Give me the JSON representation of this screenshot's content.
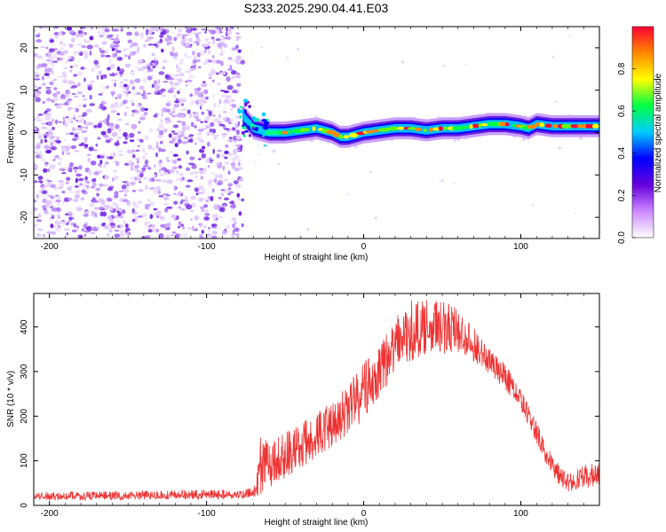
{
  "title": "S233.2025.290.04.41.E03",
  "chart_data": [
    {
      "type": "heatmap",
      "title": "S233.2025.290.04.41.E03",
      "xlabel": "Height of straight line (km)",
      "ylabel": "Frequency (Hz)",
      "xlim": [
        -210,
        150
      ],
      "ylim": [
        -25,
        25
      ],
      "xticks": [
        -200,
        -100,
        0,
        100
      ],
      "yticks": [
        -20,
        -10,
        0,
        10,
        20
      ],
      "noise_region_x": [
        -210,
        -77
      ],
      "ridge": {
        "x": [
          -77,
          -70,
          -60,
          -50,
          -40,
          -30,
          -20,
          -15,
          -10,
          0,
          10,
          20,
          30,
          40,
          50,
          60,
          70,
          80,
          90,
          100,
          105,
          110,
          120,
          130,
          140,
          150
        ],
        "freq": [
          4,
          1,
          0,
          0,
          0.5,
          1,
          0,
          -1,
          -1,
          0,
          0.5,
          1,
          1,
          0.5,
          1,
          1,
          1.5,
          2,
          2,
          1.5,
          1,
          2,
          1.5,
          1.5,
          1.5,
          1.5
        ]
      },
      "colorbar": {
        "label": "Normalized spectral amplitude",
        "range": [
          0,
          1
        ],
        "ticks": [
          "0.0",
          "0.2",
          "0.4",
          "0.6",
          "0.8"
        ],
        "colors": [
          "#ffffff",
          "#cc88ff",
          "#6600dd",
          "#0000ff",
          "#00ccff",
          "#00ff44",
          "#ffff00",
          "#ff8800",
          "#ff0033"
        ]
      }
    },
    {
      "type": "line",
      "title": "",
      "xlabel": "Height of straight line (km)",
      "ylabel": "SNR (10 * v/v)",
      "xlim": [
        -210,
        150
      ],
      "ylim": [
        0,
        475
      ],
      "xticks": [
        -200,
        -100,
        0,
        100
      ],
      "yticks": [
        0,
        100,
        200,
        300,
        400
      ],
      "series": [
        {
          "name": "SNR",
          "color": "#ee3333",
          "envelope_x": [
            -210,
            -150,
            -100,
            -80,
            -70,
            -65,
            -60,
            -40,
            -20,
            0,
            10,
            20,
            30,
            40,
            50,
            60,
            70,
            80,
            90,
            100,
            110,
            120,
            130,
            140,
            150
          ],
          "envelope_lo": [
            12,
            12,
            14,
            14,
            16,
            20,
            40,
            80,
            130,
            190,
            240,
            290,
            320,
            340,
            340,
            340,
            320,
            290,
            260,
            210,
            140,
            60,
            30,
            40,
            40
          ],
          "envelope_hi": [
            30,
            32,
            35,
            35,
            40,
            175,
            140,
            190,
            230,
            320,
            380,
            430,
            460,
            465,
            460,
            440,
            400,
            350,
            320,
            260,
            190,
            110,
            70,
            90,
            100
          ]
        }
      ]
    }
  ]
}
